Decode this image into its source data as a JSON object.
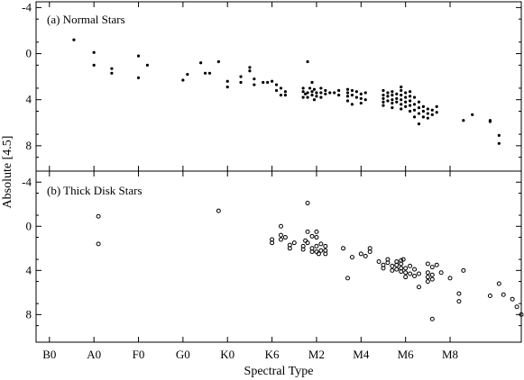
{
  "chart_data": {
    "type": "scatter",
    "xlabel": "Spectral Type",
    "ylabel": "Absolute [4.5]",
    "x_ticks": [
      "B0",
      "A0",
      "F0",
      "G0",
      "K0",
      "K6",
      "M2",
      "M4",
      "M6",
      "M8"
    ],
    "xlim": [
      -0.3,
      10.6
    ],
    "y_inverted": true,
    "grid": false,
    "panels": [
      {
        "label": "(a) Normal Stars",
        "ylim": [
          -4.5,
          10.2
        ],
        "y_ticks": [
          -4,
          0,
          4,
          8
        ],
        "marker": "filled",
        "points": [
          [
            0.55,
            -1.2
          ],
          [
            1.0,
            -0.1
          ],
          [
            1.0,
            1.0
          ],
          [
            1.4,
            1.3
          ],
          [
            1.4,
            1.7
          ],
          [
            2.0,
            0.2
          ],
          [
            2.0,
            2.1
          ],
          [
            2.2,
            1.0
          ],
          [
            3.0,
            2.3
          ],
          [
            3.1,
            1.8
          ],
          [
            3.4,
            0.8
          ],
          [
            3.5,
            1.7
          ],
          [
            3.6,
            1.7
          ],
          [
            3.8,
            0.7
          ],
          [
            4.0,
            2.4
          ],
          [
            4.0,
            2.9
          ],
          [
            4.3,
            2.0
          ],
          [
            4.3,
            2.5
          ],
          [
            4.5,
            1.2
          ],
          [
            4.5,
            1.5
          ],
          [
            4.6,
            2.2
          ],
          [
            4.6,
            2.7
          ],
          [
            4.8,
            2.5
          ],
          [
            4.9,
            2.5
          ],
          [
            5.0,
            2.4
          ],
          [
            5.1,
            2.7
          ],
          [
            5.1,
            3.2
          ],
          [
            5.2,
            3.0
          ],
          [
            5.2,
            3.6
          ],
          [
            5.3,
            3.3
          ],
          [
            5.3,
            3.6
          ],
          [
            5.7,
            3.0
          ],
          [
            5.7,
            3.3
          ],
          [
            5.7,
            3.8
          ],
          [
            5.75,
            3.5
          ],
          [
            5.8,
            0.7
          ],
          [
            5.8,
            3.4
          ],
          [
            5.8,
            3.8
          ],
          [
            5.85,
            3.0
          ],
          [
            5.9,
            2.5
          ],
          [
            5.9,
            3.3
          ],
          [
            5.9,
            3.6
          ],
          [
            5.95,
            3.1
          ],
          [
            5.95,
            4.0
          ],
          [
            6.0,
            3.4
          ],
          [
            6.0,
            3.7
          ],
          [
            6.1,
            3.0
          ],
          [
            6.1,
            3.4
          ],
          [
            6.1,
            3.8
          ],
          [
            6.2,
            3.2
          ],
          [
            6.2,
            3.5
          ],
          [
            6.3,
            3.4
          ],
          [
            6.4,
            3.4
          ],
          [
            6.5,
            3.2
          ],
          [
            6.5,
            3.6
          ],
          [
            6.7,
            3.1
          ],
          [
            6.7,
            3.4
          ],
          [
            6.7,
            3.7
          ],
          [
            6.7,
            4.1
          ],
          [
            6.8,
            3.2
          ],
          [
            6.8,
            3.6
          ],
          [
            6.8,
            4.4
          ],
          [
            6.9,
            3.3
          ],
          [
            6.9,
            3.8
          ],
          [
            7.0,
            3.5
          ],
          [
            7.0,
            3.9
          ],
          [
            7.0,
            4.3
          ],
          [
            7.1,
            3.4
          ],
          [
            7.1,
            4.0
          ],
          [
            7.5,
            3.2
          ],
          [
            7.5,
            3.6
          ],
          [
            7.5,
            3.9
          ],
          [
            7.5,
            4.2
          ],
          [
            7.5,
            4.5
          ],
          [
            7.6,
            3.4
          ],
          [
            7.6,
            3.7
          ],
          [
            7.6,
            4.1
          ],
          [
            7.7,
            3.3
          ],
          [
            7.7,
            3.6
          ],
          [
            7.7,
            4.0
          ],
          [
            7.7,
            4.3
          ],
          [
            7.7,
            4.7
          ],
          [
            7.8,
            3.5
          ],
          [
            7.8,
            3.9
          ],
          [
            7.8,
            4.2
          ],
          [
            7.9,
            2.9
          ],
          [
            7.9,
            3.2
          ],
          [
            7.9,
            3.6
          ],
          [
            7.9,
            4.0
          ],
          [
            7.9,
            4.4
          ],
          [
            7.9,
            4.8
          ],
          [
            8.0,
            3.4
          ],
          [
            8.0,
            3.8
          ],
          [
            8.0,
            4.2
          ],
          [
            8.0,
            4.6
          ],
          [
            8.1,
            3.3
          ],
          [
            8.1,
            3.7
          ],
          [
            8.1,
            4.1
          ],
          [
            8.1,
            4.5
          ],
          [
            8.1,
            5.0
          ],
          [
            8.2,
            3.8
          ],
          [
            8.2,
            4.4
          ],
          [
            8.2,
            4.9
          ],
          [
            8.2,
            5.5
          ],
          [
            8.3,
            4.2
          ],
          [
            8.3,
            4.7
          ],
          [
            8.3,
            5.2
          ],
          [
            8.3,
            6.1
          ],
          [
            8.4,
            4.6
          ],
          [
            8.4,
            5.0
          ],
          [
            8.4,
            5.5
          ],
          [
            8.5,
            4.8
          ],
          [
            8.5,
            5.2
          ],
          [
            8.5,
            5.6
          ],
          [
            8.6,
            4.9
          ],
          [
            8.6,
            5.3
          ],
          [
            8.7,
            4.6
          ],
          [
            8.7,
            5.1
          ],
          [
            9.3,
            5.8
          ],
          [
            9.5,
            5.3
          ],
          [
            9.9,
            5.8
          ],
          [
            9.9,
            5.9
          ],
          [
            10.1,
            7.1
          ],
          [
            10.1,
            7.8
          ]
        ]
      },
      {
        "label": "(b) Thick Disk Stars",
        "ylim": [
          -5.0,
          10.5
        ],
        "y_ticks": [
          -4,
          0,
          4,
          8
        ],
        "marker": "open",
        "points": [
          [
            1.1,
            -0.9
          ],
          [
            1.1,
            1.6
          ],
          [
            3.8,
            -1.4
          ],
          [
            5.0,
            1.2
          ],
          [
            5.0,
            1.5
          ],
          [
            5.2,
            0.0
          ],
          [
            5.2,
            0.8
          ],
          [
            5.2,
            1.2
          ],
          [
            5.3,
            1.0
          ],
          [
            5.4,
            1.7
          ],
          [
            5.4,
            2.0
          ],
          [
            5.5,
            1.5
          ],
          [
            5.7,
            1.8
          ],
          [
            5.7,
            2.1
          ],
          [
            5.75,
            1.3
          ],
          [
            5.8,
            -2.1
          ],
          [
            5.8,
            0.5
          ],
          [
            5.8,
            1.5
          ],
          [
            5.9,
            0.9
          ],
          [
            5.9,
            2.0
          ],
          [
            5.9,
            2.3
          ],
          [
            6.0,
            0.5
          ],
          [
            6.0,
            1.0
          ],
          [
            6.0,
            1.8
          ],
          [
            6.0,
            2.3
          ],
          [
            6.05,
            2.5
          ],
          [
            6.1,
            1.6
          ],
          [
            6.1,
            2.2
          ],
          [
            6.2,
            1.8
          ],
          [
            6.2,
            2.2
          ],
          [
            6.2,
            2.5
          ],
          [
            6.6,
            2.0
          ],
          [
            6.7,
            4.7
          ],
          [
            6.8,
            2.8
          ],
          [
            7.0,
            2.5
          ],
          [
            7.1,
            2.7
          ],
          [
            7.2,
            2.0
          ],
          [
            7.2,
            2.3
          ],
          [
            7.4,
            3.2
          ],
          [
            7.5,
            3.5
          ],
          [
            7.5,
            3.8
          ],
          [
            7.6,
            3.0
          ],
          [
            7.6,
            3.3
          ],
          [
            7.7,
            3.6
          ],
          [
            7.7,
            4.0
          ],
          [
            7.8,
            3.2
          ],
          [
            7.8,
            3.5
          ],
          [
            7.8,
            3.9
          ],
          [
            7.9,
            3.1
          ],
          [
            7.9,
            3.4
          ],
          [
            7.9,
            3.8
          ],
          [
            7.9,
            4.1
          ],
          [
            7.95,
            3.0
          ],
          [
            8.0,
            3.8
          ],
          [
            8.0,
            4.2
          ],
          [
            8.0,
            4.6
          ],
          [
            8.1,
            3.6
          ],
          [
            8.1,
            4.3
          ],
          [
            8.2,
            3.9
          ],
          [
            8.2,
            4.5
          ],
          [
            8.3,
            4.3
          ],
          [
            8.3,
            5.5
          ],
          [
            8.5,
            3.4
          ],
          [
            8.5,
            4.2
          ],
          [
            8.5,
            4.6
          ],
          [
            8.5,
            5.0
          ],
          [
            8.6,
            3.7
          ],
          [
            8.6,
            4.4
          ],
          [
            8.6,
            4.8
          ],
          [
            8.6,
            8.4
          ],
          [
            8.7,
            3.5
          ],
          [
            8.8,
            4.2
          ],
          [
            9.0,
            4.7
          ],
          [
            9.2,
            6.1
          ],
          [
            9.2,
            6.8
          ],
          [
            9.3,
            4.0
          ],
          [
            9.9,
            6.3
          ],
          [
            10.1,
            5.2
          ],
          [
            10.2,
            6.2
          ],
          [
            10.4,
            6.6
          ],
          [
            10.5,
            7.3
          ],
          [
            10.6,
            8.0
          ]
        ]
      }
    ]
  }
}
